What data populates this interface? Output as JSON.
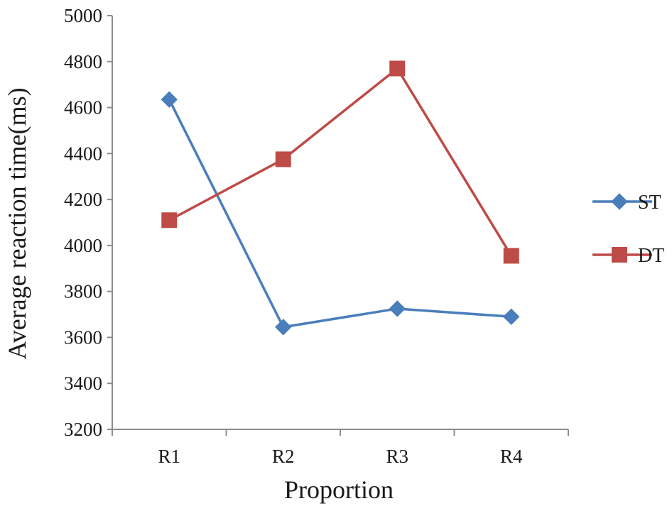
{
  "chart_data": {
    "type": "line",
    "categories": [
      "R1",
      "R2",
      "R3",
      "R4"
    ],
    "series": [
      {
        "name": "ST",
        "values": [
          4635,
          3645,
          3725,
          3690
        ],
        "color": "#4a7ebb",
        "marker": "diamond"
      },
      {
        "name": "DT",
        "values": [
          4110,
          4375,
          4770,
          3955
        ],
        "color": "#be4b48",
        "marker": "square"
      }
    ],
    "title": "",
    "xlabel": "Proportion",
    "ylabel": "Average reaction time(ms)",
    "ylim": [
      3200,
      5000
    ],
    "yticks": [
      3200,
      3400,
      3600,
      3800,
      4000,
      4200,
      4400,
      4600,
      4800,
      5000
    ],
    "grid": false,
    "legend_position": "right"
  }
}
